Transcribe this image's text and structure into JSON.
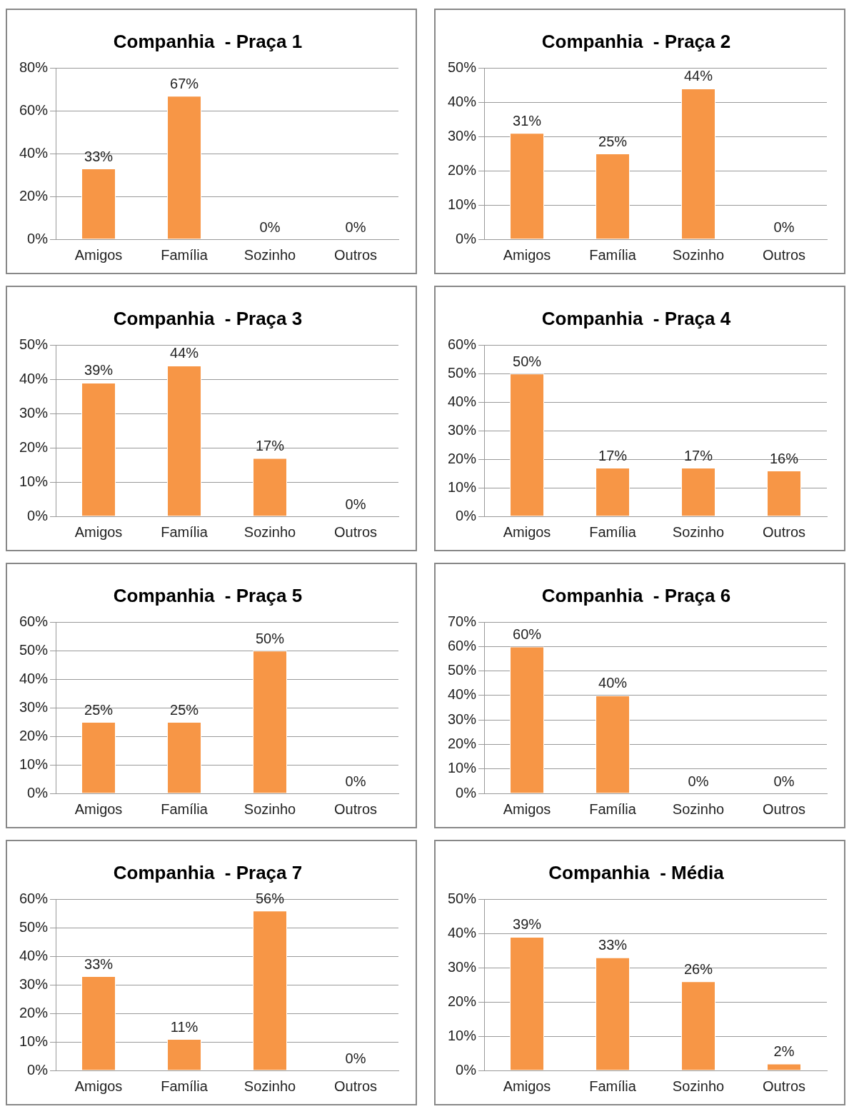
{
  "chart_data": [
    {
      "type": "bar",
      "title": "Companhia  - Praça 1",
      "categories": [
        "Amigos",
        "Família",
        "Sozinho",
        "Outros"
      ],
      "values": [
        33,
        67,
        0,
        0
      ],
      "value_labels": [
        "33%",
        "67%",
        "0%",
        "0%"
      ],
      "color": "#f79646",
      "ylim": [
        0,
        80
      ],
      "yticks": [
        {
          "value": 0,
          "label": "0%"
        },
        {
          "value": 20,
          "label": "20%"
        },
        {
          "value": 40,
          "label": "40%"
        },
        {
          "value": 60,
          "label": "60%"
        },
        {
          "value": 80,
          "label": "80%"
        }
      ],
      "grid": "y"
    },
    {
      "type": "bar",
      "title": "Companhia  - Praça 2",
      "categories": [
        "Amigos",
        "Família",
        "Sozinho",
        "Outros"
      ],
      "values": [
        31,
        25,
        44,
        0
      ],
      "value_labels": [
        "31%",
        "25%",
        "44%",
        "0%"
      ],
      "color": "#f79646",
      "ylim": [
        0,
        50
      ],
      "yticks": [
        {
          "value": 0,
          "label": "0%"
        },
        {
          "value": 10,
          "label": "10%"
        },
        {
          "value": 20,
          "label": "20%"
        },
        {
          "value": 30,
          "label": "30%"
        },
        {
          "value": 40,
          "label": "40%"
        },
        {
          "value": 50,
          "label": "50%"
        }
      ],
      "grid": "y"
    },
    {
      "type": "bar",
      "title": "Companhia  - Praça 3",
      "categories": [
        "Amigos",
        "Família",
        "Sozinho",
        "Outros"
      ],
      "values": [
        39,
        44,
        17,
        0
      ],
      "value_labels": [
        "39%",
        "44%",
        "17%",
        "0%"
      ],
      "color": "#f79646",
      "ylim": [
        0,
        50
      ],
      "yticks": [
        {
          "value": 0,
          "label": "0%"
        },
        {
          "value": 10,
          "label": "10%"
        },
        {
          "value": 20,
          "label": "20%"
        },
        {
          "value": 30,
          "label": "30%"
        },
        {
          "value": 40,
          "label": "40%"
        },
        {
          "value": 50,
          "label": "50%"
        }
      ],
      "grid": "y"
    },
    {
      "type": "bar",
      "title": "Companhia  - Praça 4",
      "categories": [
        "Amigos",
        "Família",
        "Sozinho",
        "Outros"
      ],
      "values": [
        50,
        17,
        17,
        16
      ],
      "value_labels": [
        "50%",
        "17%",
        "17%",
        "16%"
      ],
      "color": "#f79646",
      "ylim": [
        0,
        60
      ],
      "yticks": [
        {
          "value": 0,
          "label": "0%"
        },
        {
          "value": 10,
          "label": "10%"
        },
        {
          "value": 20,
          "label": "20%"
        },
        {
          "value": 30,
          "label": "30%"
        },
        {
          "value": 40,
          "label": "40%"
        },
        {
          "value": 50,
          "label": "50%"
        },
        {
          "value": 60,
          "label": "60%"
        }
      ],
      "grid": "y"
    },
    {
      "type": "bar",
      "title": "Companhia  - Praça 5",
      "categories": [
        "Amigos",
        "Família",
        "Sozinho",
        "Outros"
      ],
      "values": [
        25,
        25,
        50,
        0
      ],
      "value_labels": [
        "25%",
        "25%",
        "50%",
        "0%"
      ],
      "color": "#f79646",
      "ylim": [
        0,
        60
      ],
      "yticks": [
        {
          "value": 0,
          "label": "0%"
        },
        {
          "value": 10,
          "label": "10%"
        },
        {
          "value": 20,
          "label": "20%"
        },
        {
          "value": 30,
          "label": "30%"
        },
        {
          "value": 40,
          "label": "40%"
        },
        {
          "value": 50,
          "label": "50%"
        },
        {
          "value": 60,
          "label": "60%"
        }
      ],
      "grid": "y"
    },
    {
      "type": "bar",
      "title": "Companhia  - Praça 6",
      "categories": [
        "Amigos",
        "Família",
        "Sozinho",
        "Outros"
      ],
      "values": [
        60,
        40,
        0,
        0
      ],
      "value_labels": [
        "60%",
        "40%",
        "0%",
        "0%"
      ],
      "color": "#f79646",
      "ylim": [
        0,
        70
      ],
      "yticks": [
        {
          "value": 0,
          "label": "0%"
        },
        {
          "value": 10,
          "label": "10%"
        },
        {
          "value": 20,
          "label": "20%"
        },
        {
          "value": 30,
          "label": "30%"
        },
        {
          "value": 40,
          "label": "40%"
        },
        {
          "value": 50,
          "label": "50%"
        },
        {
          "value": 60,
          "label": "60%"
        },
        {
          "value": 70,
          "label": "70%"
        }
      ],
      "grid": "y"
    },
    {
      "type": "bar",
      "title": "Companhia  - Praça 7",
      "categories": [
        "Amigos",
        "Família",
        "Sozinho",
        "Outros"
      ],
      "values": [
        33,
        11,
        56,
        0
      ],
      "value_labels": [
        "33%",
        "11%",
        "56%",
        "0%"
      ],
      "color": "#f79646",
      "ylim": [
        0,
        60
      ],
      "yticks": [
        {
          "value": 0,
          "label": "0%"
        },
        {
          "value": 10,
          "label": "10%"
        },
        {
          "value": 20,
          "label": "20%"
        },
        {
          "value": 30,
          "label": "30%"
        },
        {
          "value": 40,
          "label": "40%"
        },
        {
          "value": 50,
          "label": "50%"
        },
        {
          "value": 60,
          "label": "60%"
        }
      ],
      "grid": "y"
    },
    {
      "type": "bar",
      "title": "Companhia  - Média",
      "categories": [
        "Amigos",
        "Família",
        "Sozinho",
        "Outros"
      ],
      "values": [
        39,
        33,
        26,
        2
      ],
      "value_labels": [
        "39%",
        "33%",
        "26%",
        "2%"
      ],
      "color": "#f79646",
      "ylim": [
        0,
        50
      ],
      "yticks": [
        {
          "value": 0,
          "label": "0%"
        },
        {
          "value": 10,
          "label": "10%"
        },
        {
          "value": 20,
          "label": "20%"
        },
        {
          "value": 30,
          "label": "30%"
        },
        {
          "value": 40,
          "label": "40%"
        },
        {
          "value": 50,
          "label": "50%"
        }
      ],
      "grid": "y"
    }
  ]
}
